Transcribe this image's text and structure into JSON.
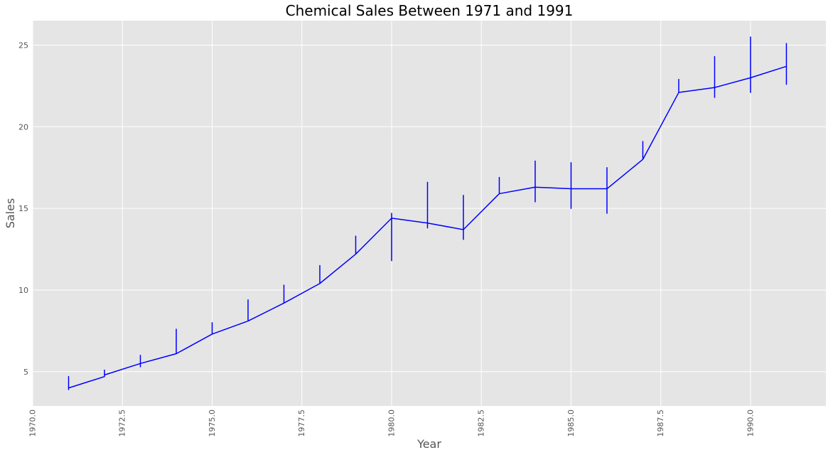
{
  "chart_data": {
    "type": "line",
    "title": "Chemical Sales Between 1971 and 1991",
    "xlabel": "Year",
    "ylabel": "Sales",
    "xlim": [
      1970.0,
      1992.1
    ],
    "ylim": [
      2.9,
      26.5
    ],
    "grid": true,
    "legend": "none",
    "background_color": "#e5e5e5",
    "line_color": "#0000ff",
    "xticks": [
      1970.0,
      1972.5,
      1975.0,
      1977.5,
      1980.0,
      1982.5,
      1985.0,
      1987.5,
      1990.0
    ],
    "xtick_labels": [
      "1970.0",
      "1972.5",
      "1975.0",
      "1977.5",
      "1980.0",
      "1982.5",
      "1985.0",
      "1987.5",
      "1990.0"
    ],
    "yticks": [
      5,
      10,
      15,
      20,
      25
    ],
    "ytick_labels": [
      "5",
      "10",
      "15",
      "20",
      "25"
    ],
    "series": [
      {
        "x": [
          1971,
          1971,
          1971,
          1971,
          1971,
          1971,
          1971,
          1971,
          1971,
          1971,
          1971,
          1971,
          1972,
          1972,
          1972,
          1972,
          1972,
          1972,
          1972,
          1972,
          1972,
          1972,
          1972,
          1972,
          1973,
          1973,
          1973,
          1973,
          1973,
          1973,
          1973,
          1973,
          1973,
          1973,
          1973,
          1973,
          1974,
          1974,
          1974,
          1974,
          1974,
          1974,
          1974,
          1974,
          1974,
          1974,
          1974,
          1974,
          1975,
          1975,
          1975,
          1975,
          1975,
          1975,
          1975,
          1975,
          1975,
          1975,
          1975,
          1975,
          1976,
          1976,
          1976,
          1976,
          1976,
          1976,
          1976,
          1976,
          1976,
          1976,
          1976,
          1976,
          1977,
          1977,
          1977,
          1977,
          1977,
          1977,
          1977,
          1977,
          1977,
          1977,
          1977,
          1977,
          1978,
          1978,
          1978,
          1978,
          1978,
          1978,
          1978,
          1978,
          1978,
          1978,
          1978,
          1978,
          1979,
          1979,
          1979,
          1979,
          1979,
          1979,
          1979,
          1979,
          1979,
          1979,
          1979,
          1979,
          1980,
          1980,
          1980,
          1980,
          1980,
          1980,
          1980,
          1980,
          1980,
          1980,
          1980,
          1980,
          1981,
          1981,
          1981,
          1981,
          1981,
          1981,
          1981,
          1981,
          1981,
          1981,
          1981,
          1981,
          1982,
          1982,
          1982,
          1982,
          1982,
          1982,
          1982,
          1982,
          1982,
          1982,
          1982,
          1982,
          1983,
          1983,
          1983,
          1983,
          1983,
          1983,
          1983,
          1983,
          1983,
          1983,
          1983,
          1983,
          1984,
          1984,
          1984,
          1984,
          1984,
          1984,
          1984,
          1984,
          1984,
          1984,
          1984,
          1984,
          1985,
          1985,
          1985,
          1985,
          1985,
          1985,
          1985,
          1985,
          1985,
          1985,
          1985,
          1985,
          1986,
          1986,
          1986,
          1986,
          1986,
          1986,
          1986,
          1986,
          1986,
          1986,
          1986,
          1986,
          1987,
          1987,
          1987,
          1987,
          1987,
          1987,
          1987,
          1987,
          1987,
          1987,
          1987,
          1987,
          1988,
          1988,
          1988,
          1988,
          1988,
          1988,
          1988,
          1988,
          1988,
          1988,
          1988,
          1988,
          1989,
          1989,
          1989,
          1989,
          1989,
          1989,
          1989,
          1989,
          1989,
          1989,
          1989,
          1989,
          1990,
          1990,
          1990,
          1990,
          1990,
          1990,
          1990,
          1990,
          1990,
          1990,
          1990,
          1990,
          1991,
          1991,
          1991,
          1991,
          1991,
          1991,
          1991,
          1991,
          1991,
          1991,
          1991,
          1991
        ],
        "y": [
          4.0,
          4.2,
          4.5,
          4.7,
          4.3,
          4.1,
          4.6,
          4.4,
          3.9,
          4.5,
          4.2,
          4.0,
          4.7,
          4.9,
          5.1,
          4.8,
          5.0,
          4.9,
          4.7,
          5.1,
          4.8,
          4.9,
          4.7,
          4.8,
          5.5,
          5.7,
          6.0,
          5.4,
          5.8,
          5.6,
          5.3,
          5.9,
          5.5,
          5.7,
          5.4,
          5.5,
          6.1,
          6.5,
          7.0,
          7.6,
          6.8,
          6.3,
          6.6,
          7.2,
          6.9,
          6.4,
          6.2,
          6.1,
          7.3,
          7.6,
          8.0,
          7.7,
          7.5,
          7.9,
          7.4,
          7.8,
          7.6,
          7.5,
          7.4,
          7.3,
          8.1,
          8.5,
          9.0,
          9.4,
          8.8,
          8.3,
          8.7,
          9.2,
          8.9,
          8.4,
          8.2,
          8.1,
          9.2,
          9.6,
          10.0,
          10.3,
          9.8,
          9.4,
          9.9,
          10.1,
          9.7,
          9.5,
          9.3,
          9.2,
          10.4,
          10.8,
          11.2,
          11.5,
          11.0,
          10.6,
          11.1,
          11.3,
          10.9,
          10.7,
          10.5,
          10.4,
          12.2,
          12.6,
          13.0,
          13.3,
          12.8,
          12.4,
          12.9,
          13.1,
          12.7,
          12.5,
          12.3,
          12.2,
          14.4,
          14.0,
          13.2,
          12.5,
          11.8,
          12.2,
          13.0,
          13.8,
          14.7,
          14.2,
          13.5,
          14.4,
          14.1,
          14.8,
          15.6,
          16.6,
          15.2,
          14.5,
          13.8,
          16.0,
          15.0,
          14.3,
          14.6,
          14.1,
          13.7,
          14.3,
          15.0,
          15.8,
          14.6,
          13.9,
          13.1,
          14.8,
          14.0,
          13.5,
          13.9,
          13.7,
          15.9,
          16.3,
          16.7,
          16.9,
          16.5,
          16.1,
          16.6,
          16.8,
          16.4,
          16.2,
          16.0,
          15.9,
          16.3,
          16.9,
          17.5,
          17.9,
          17.2,
          16.6,
          15.4,
          17.0,
          16.4,
          15.8,
          16.1,
          16.3,
          16.2,
          16.8,
          17.4,
          17.8,
          17.0,
          16.5,
          15.0,
          16.9,
          16.0,
          15.5,
          15.9,
          16.2,
          16.2,
          16.7,
          17.1,
          17.5,
          16.8,
          15.9,
          14.7,
          16.4,
          15.6,
          15.2,
          16.0,
          16.2,
          18.0,
          18.4,
          18.8,
          19.1,
          18.6,
          18.2,
          18.7,
          18.9,
          18.5,
          18.3,
          18.1,
          18.0,
          22.1,
          22.4,
          22.7,
          22.9,
          22.5,
          22.2,
          22.6,
          22.8,
          22.4,
          22.3,
          22.2,
          22.1,
          22.4,
          23.0,
          23.7,
          24.3,
          23.3,
          22.6,
          21.8,
          23.9,
          22.9,
          22.2,
          22.7,
          22.4,
          23.0,
          23.8,
          24.6,
          25.5,
          24.2,
          23.2,
          22.1,
          24.8,
          23.5,
          22.6,
          23.3,
          23.0,
          23.7,
          24.2,
          24.7,
          25.1,
          24.5,
          23.9,
          22.6,
          24.9,
          24.0,
          23.2,
          23.5,
          23.7
        ]
      }
    ]
  }
}
